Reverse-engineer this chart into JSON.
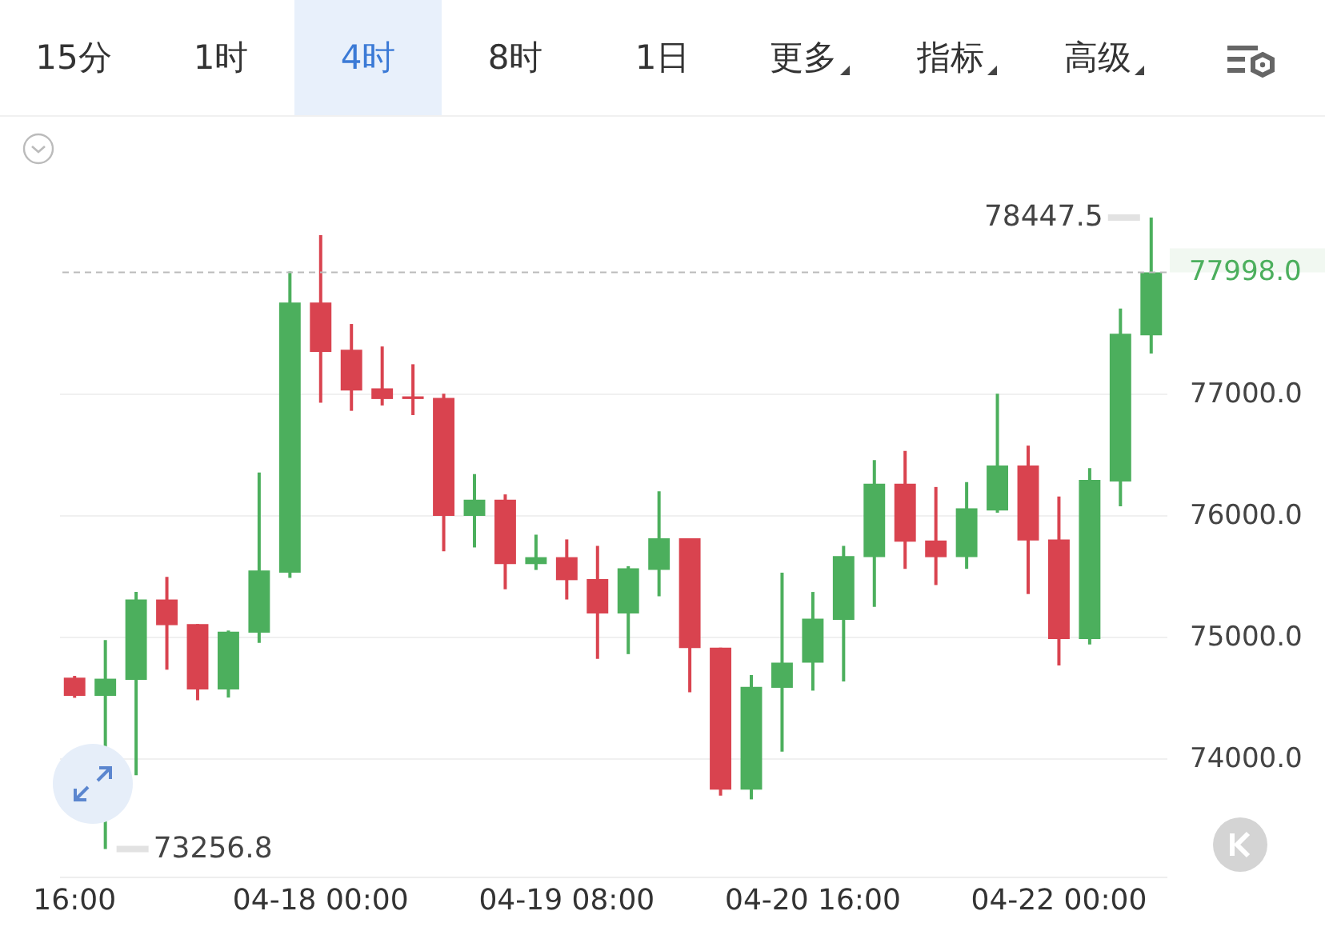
{
  "chart_data": {
    "type": "candlestick",
    "categories": [
      "16:00",
      null,
      null,
      null,
      null,
      null,
      null,
      null,
      "04-18 00:00",
      null,
      null,
      null,
      null,
      null,
      null,
      null,
      "04-19 08:00",
      null,
      null,
      null,
      null,
      null,
      null,
      null,
      "04-20 16:00",
      null,
      null,
      null,
      null,
      null,
      null,
      null,
      "04-22 00:00",
      null,
      null,
      null
    ],
    "ohlc": [
      [
        74665,
        74680,
        74500,
        74516
      ],
      [
        74516,
        74974,
        73256.8,
        74657
      ],
      [
        74648,
        75370,
        73864,
        75308
      ],
      [
        75308,
        75494,
        74731,
        75097
      ],
      [
        75106,
        75106,
        74480,
        74568
      ],
      [
        74568,
        75053,
        74502,
        75044
      ],
      [
        75035,
        76352,
        74952,
        75546
      ],
      [
        75529,
        78004,
        75485,
        77749
      ],
      [
        77749,
        78304,
        76925,
        77344
      ],
      [
        77361,
        77573,
        76859,
        77026
      ],
      [
        77044,
        77388,
        76903,
        76956
      ],
      [
        76978,
        77242,
        76824,
        76956
      ],
      [
        76965,
        77000,
        75705,
        75996
      ],
      [
        75996,
        76339,
        75736,
        76128
      ],
      [
        76128,
        76172,
        75392,
        75599
      ],
      [
        75599,
        75841,
        75551,
        75656
      ],
      [
        75656,
        75802,
        75308,
        75467
      ],
      [
        75476,
        75749,
        74820,
        75194
      ],
      [
        75194,
        75582,
        74859,
        75564
      ],
      [
        75551,
        76198,
        75335,
        75811
      ],
      [
        75811,
        75811,
        74546,
        74908
      ],
      [
        74912,
        74912,
        73696,
        73745
      ],
      [
        73745,
        74687,
        73665,
        74590
      ],
      [
        74582,
        75529,
        74057,
        74789
      ],
      [
        74789,
        75370,
        74559,
        75150
      ],
      [
        75141,
        75749,
        74634,
        75665
      ],
      [
        75656,
        76454,
        75247,
        76260
      ],
      [
        76260,
        76529,
        75560,
        75784
      ],
      [
        75793,
        76233,
        75427,
        75656
      ],
      [
        75656,
        76273,
        75560,
        76057
      ],
      [
        76040,
        77000,
        76022,
        76410
      ],
      [
        76410,
        76573,
        75353,
        75793
      ],
      [
        75802,
        76154,
        74766,
        74982
      ],
      [
        74982,
        76388,
        74938,
        76291
      ],
      [
        76278,
        77700,
        76075,
        77493
      ],
      [
        77480,
        78447.5,
        77330,
        77998
      ]
    ],
    "colors": [
      "#d9434f",
      "#4caf5d",
      "#4caf5d",
      "#d9434f",
      "#d9434f",
      "#4caf5d",
      "#4caf5d",
      "#4caf5d",
      "#d9434f",
      "#d9434f",
      "#d9434f",
      "#d9434f",
      "#d9434f",
      "#4caf5d",
      "#d9434f",
      "#4caf5d",
      "#d9434f",
      "#d9434f",
      "#4caf5d",
      "#4caf5d",
      "#d9434f",
      "#d9434f",
      "#4caf5d",
      "#4caf5d",
      "#4caf5d",
      "#4caf5d",
      "#4caf5d",
      "#d9434f",
      "#d9434f",
      "#4caf5d",
      "#4caf5d",
      "#d9434f",
      "#d9434f",
      "#4caf5d",
      "#4caf5d",
      "#4caf5d"
    ],
    "ylim": [
      73030,
      79250
    ],
    "yticks": [
      {
        "value": 74000,
        "label": "74000.0"
      },
      {
        "value": 75000,
        "label": "75000.0"
      },
      {
        "value": 76000,
        "label": "76000.0"
      },
      {
        "value": 77000,
        "label": "77000.0"
      }
    ],
    "grid": "y",
    "ref_lines": [
      {
        "axis": "y",
        "value": 77998,
        "label": "77998.0",
        "color": "#bbbbbb",
        "line_style": "dashed"
      }
    ],
    "annotations": [
      "15分",
      "1时",
      "4时",
      "8时",
      "1日",
      "更多",
      "指标",
      "高级",
      {
        "text": "78447.5"
      },
      {
        "text": "73256.8"
      }
    ]
  }
}
